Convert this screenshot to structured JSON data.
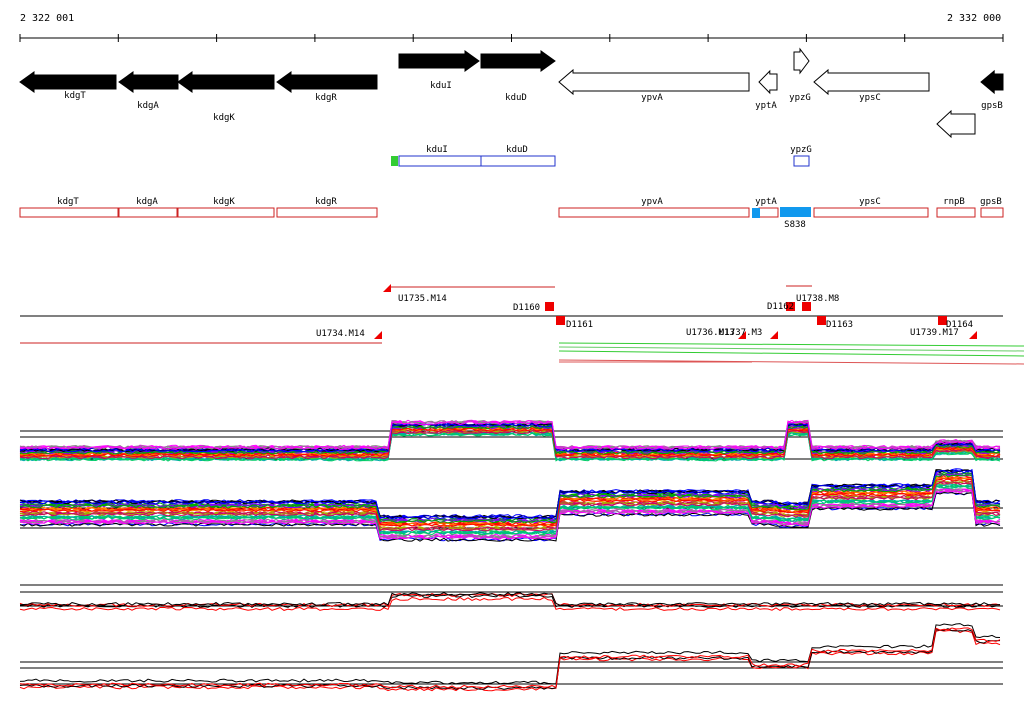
{
  "axis": {
    "start_label": "2 322 001",
    "end_label": "2 332 000"
  },
  "colors": {
    "gene_fill": "#000000",
    "operon_outline": "#2233cc",
    "transcript_outline": "#cc2222",
    "green_marker": "#33cc33",
    "blue_marker": "#1199ee",
    "breakpoint_red": "#ee0000"
  },
  "genes": [
    {
      "name": "kdgT",
      "strand": "reverse",
      "filled": true
    },
    {
      "name": "kdgA",
      "strand": "reverse",
      "filled": true
    },
    {
      "name": "kdgK",
      "strand": "reverse",
      "filled": true
    },
    {
      "name": "kdgR",
      "strand": "reverse",
      "filled": true
    },
    {
      "name": "kduI",
      "strand": "forward",
      "filled": true
    },
    {
      "name": "kduD",
      "strand": "forward",
      "filled": true
    },
    {
      "name": "ypvA",
      "strand": "reverse",
      "filled": false
    },
    {
      "name": "yptA",
      "strand": "reverse",
      "filled": false
    },
    {
      "name": "ypzG",
      "strand": "forward",
      "filled": false
    },
    {
      "name": "ypsC",
      "strand": "reverse",
      "filled": false
    },
    {
      "name": "gpsB",
      "strand": "reverse",
      "filled": true
    },
    {
      "name": "",
      "strand": "reverse",
      "filled": false
    }
  ],
  "operons": [
    {
      "name": "kduI"
    },
    {
      "name": "kduD"
    },
    {
      "name": "ypzG"
    }
  ],
  "transcripts": [
    {
      "name": "kdgT"
    },
    {
      "name": "kdgA"
    },
    {
      "name": "kdgK"
    },
    {
      "name": "kdgR"
    },
    {
      "name": "ypvA"
    },
    {
      "name": "yptA"
    },
    {
      "name": "ypsC"
    },
    {
      "name": "rnpB"
    },
    {
      "name": "gpsB"
    }
  ],
  "misc_feature": {
    "name": "S838"
  },
  "breakpoints": [
    {
      "label": "U1734.M14"
    },
    {
      "label": "U1735.M14"
    },
    {
      "label": "D1160"
    },
    {
      "label": "D1161"
    },
    {
      "label": "U1736.M13"
    },
    {
      "label": "U1737.M3"
    },
    {
      "label": "D1162"
    },
    {
      "label": "U1738.M8"
    },
    {
      "label": "D1163"
    },
    {
      "label": "U1739.M17"
    },
    {
      "label": "D1164"
    }
  ]
}
